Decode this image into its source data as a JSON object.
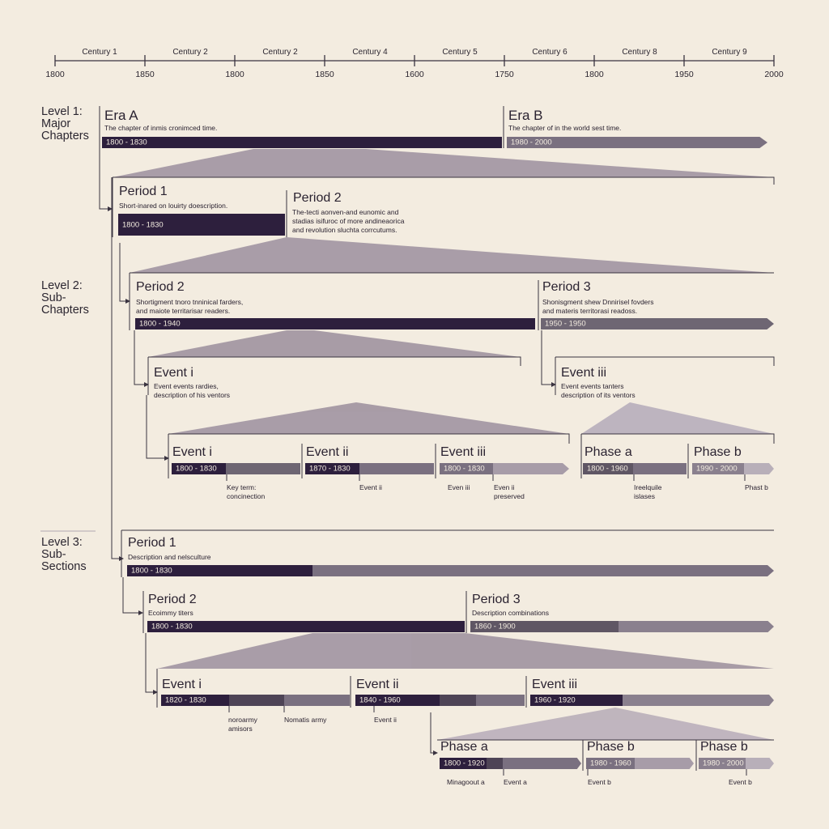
{
  "colors": {
    "background": "#f3ece0",
    "dark": "#2d1f3d",
    "mid": "#7a7080",
    "light": "#a79ca8",
    "wedge": "#9b8f9d",
    "line": "#3a3340"
  },
  "axis": {
    "centuries": [
      "Century 1",
      "Century 2",
      "Century 2",
      "Century 4",
      "Century 5",
      "Century 6",
      "Century 8",
      "Century 9"
    ],
    "years": [
      "1800",
      "1850",
      "1800",
      "1850",
      "1600",
      "1750",
      "1800",
      "1950",
      "2000"
    ]
  },
  "levels": {
    "l1": "Level 1:\nMajor\nChapters",
    "l2": "Level 2:\nSub-\nChapters",
    "l3": "Level 3:\nSub-\nSections"
  },
  "eras": [
    {
      "title": "Era A",
      "desc": "The chapter of inmis cronimced time.",
      "range": "1800 - 1830"
    },
    {
      "title": "Era B",
      "desc": "The chapter of in the world sest time.",
      "range": "1980 - 2000"
    }
  ],
  "l2_block": {
    "period1": {
      "title": "Period 1",
      "desc": "Short-inared on louirty doescription.",
      "range": "1800 - 1830"
    },
    "period2": {
      "title": "Period 2",
      "desc": "The-tecti aonven-and eunomic and\nstadias isifuroc of more andineaorica\nand revolution sluchta corrcutums."
    },
    "sub_period2": {
      "title": "Period 2",
      "desc": "Shortigment tnoro tnninical farders,\nand maiote territarisar readers.",
      "range": "1800 - 1940"
    },
    "sub_period3": {
      "title": "Period 3",
      "desc": "Shonisgment shew Dnnirisel fovders\nand materis territorasi readoss.",
      "range": "1950 - 1950"
    },
    "event_left": {
      "title": "Event i",
      "desc": "Event events rardies,\ndescription of his ventors"
    },
    "event_right": {
      "title": "Event iii",
      "desc": "Event events tanters\ndescription of its ventors"
    },
    "row": [
      {
        "title": "Event i",
        "range": "1800 - 1830",
        "note": "Key term:\nconcinection"
      },
      {
        "title": "Event ii",
        "range": "1870 - 1830",
        "note": "Event ii"
      },
      {
        "title": "Event iii",
        "range": "1800 - 1830",
        "note": "Even iii",
        "note2": "Even ii\npreserved"
      },
      {
        "title": "Phase a",
        "range": "1800 - 1960",
        "note": "Ireelquile\nislases"
      },
      {
        "title": "Phase b",
        "range": "1990 - 2000",
        "note": "Phast b"
      }
    ]
  },
  "l3_block": {
    "period1": {
      "title": "Period 1",
      "desc": "Description and nelsculture",
      "range": "1800 - 1830"
    },
    "period2": {
      "title": "Period 2",
      "desc": "Ecoimmy titers",
      "range": "1800 - 1830"
    },
    "period3": {
      "title": "Period 3",
      "desc": "Description combinations",
      "range": "1860 - 1900"
    },
    "events": [
      {
        "title": "Event i",
        "range": "1820 - 1830",
        "note": "noroarmy\namisors",
        "note2": "Nomatis army"
      },
      {
        "title": "Event ii",
        "range": "1840 - 1960",
        "note": "Event ii"
      },
      {
        "title": "Event iii",
        "range": "1960 - 1920"
      }
    ],
    "phases": [
      {
        "title": "Phase a",
        "range": "1800 - 1920",
        "note": "Minagoout a",
        "note2": "Event a"
      },
      {
        "title": "Phase b",
        "range": "1980 - 1960",
        "note": "Event b"
      },
      {
        "title": "Phase b",
        "range": "1980 - 2000",
        "note": "Event b"
      }
    ]
  }
}
